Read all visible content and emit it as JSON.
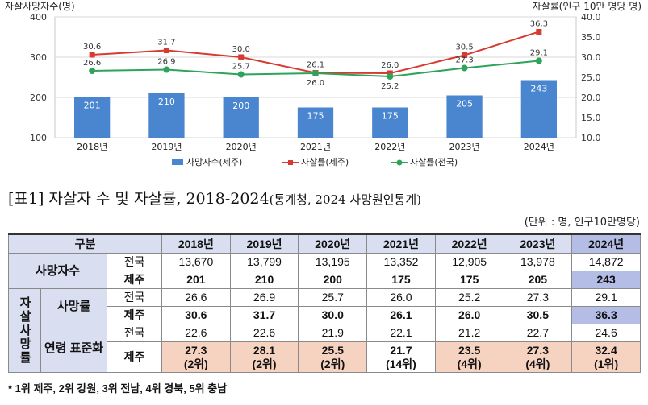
{
  "chart_data": {
    "type": "bar+line",
    "categories": [
      "2018년",
      "2019년",
      "2020년",
      "2021년",
      "2022년",
      "2023년",
      "2024년"
    ],
    "left_axis": {
      "label": "자살사망자수(명)",
      "ylim": [
        100,
        400
      ],
      "ticks": [
        100,
        200,
        300,
        400
      ]
    },
    "right_axis": {
      "label": "자살률(인구 10만 명당 명)",
      "ylim": [
        10.0,
        40.0
      ],
      "ticks": [
        "10.0",
        "15.0",
        "20.0",
        "25.0",
        "30.0",
        "35.0",
        "40.0"
      ]
    },
    "series": [
      {
        "name": "사망자수(제주)",
        "type": "bar",
        "axis": "left",
        "color": "#4a86cf",
        "values": [
          201,
          210,
          200,
          175,
          175,
          205,
          243
        ]
      },
      {
        "name": "자살률(제주)",
        "type": "line",
        "axis": "right",
        "color": "#d63a30",
        "values": [
          30.6,
          31.7,
          30.0,
          26.1,
          26.0,
          30.5,
          36.3
        ]
      },
      {
        "name": "자살률(전국)",
        "type": "line",
        "axis": "right",
        "color": "#2ea35a",
        "values": [
          26.6,
          26.9,
          25.7,
          26.0,
          25.2,
          27.3,
          29.1
        ]
      }
    ]
  },
  "table": {
    "title_main": "[표1] 자살자 수 및 자살률, 2018-2024",
    "title_source": "(통계청, 2024 사망원인통계)",
    "unit": "(단위 : 명, 인구10만명당)",
    "header_label": "구분",
    "years": [
      "2018년",
      "2019년",
      "2020년",
      "2021년",
      "2022년",
      "2023년",
      "2024년"
    ],
    "deaths_label": "사망자수",
    "suicide_rate_group": "자살사망률",
    "mortality_label": "사망률",
    "standardized_label": "연령 표준화",
    "national_label": "전국",
    "jeju_label": "제주",
    "deaths_national": [
      "13,670",
      "13,799",
      "13,195",
      "13,352",
      "12,905",
      "13,978",
      "14,872"
    ],
    "deaths_jeju": [
      "201",
      "210",
      "200",
      "175",
      "175",
      "205",
      "243"
    ],
    "rate_national": [
      "26.6",
      "26.9",
      "25.7",
      "26.0",
      "25.2",
      "27.3",
      "29.1"
    ],
    "rate_jeju": [
      "30.6",
      "31.7",
      "30.0",
      "26.1",
      "26.0",
      "30.5",
      "36.3"
    ],
    "std_national": [
      "22.6",
      "22.6",
      "21.9",
      "22.1",
      "21.2",
      "22.7",
      "24.6"
    ],
    "std_jeju": [
      "27.3",
      "28.1",
      "25.5",
      "21.7",
      "23.5",
      "27.3",
      "32.4"
    ],
    "std_jeju_rank": [
      "(2위)",
      "(2위)",
      "(2위)",
      "(14위)",
      "(4위)",
      "(4위)",
      "(1위)"
    ],
    "footnote": "* 1위 제주, 2위 강원, 3위 전남, 4위 경북, 5위 충남"
  }
}
